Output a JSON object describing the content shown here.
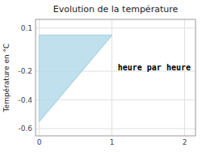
{
  "chart_data": {
    "type": "area",
    "title": "Evolution de la température",
    "y_label": "Température en °C",
    "annotations": [
      {
        "text": "heure par heure",
        "x": 1.08,
        "y": -0.175
      }
    ],
    "x": [
      0,
      0,
      1
    ],
    "series": [
      {
        "values": [
          -0.55,
          0.05,
          0.05
        ],
        "color": "#b0d8e8"
      }
    ],
    "xlim": [
      -0.05,
      2.15
    ],
    "ylim": [
      -0.65,
      0.16
    ],
    "xticks": [
      0,
      1,
      2
    ],
    "yticks": [
      -0.6,
      -0.4,
      -0.2,
      0.1
    ],
    "grid": true
  }
}
